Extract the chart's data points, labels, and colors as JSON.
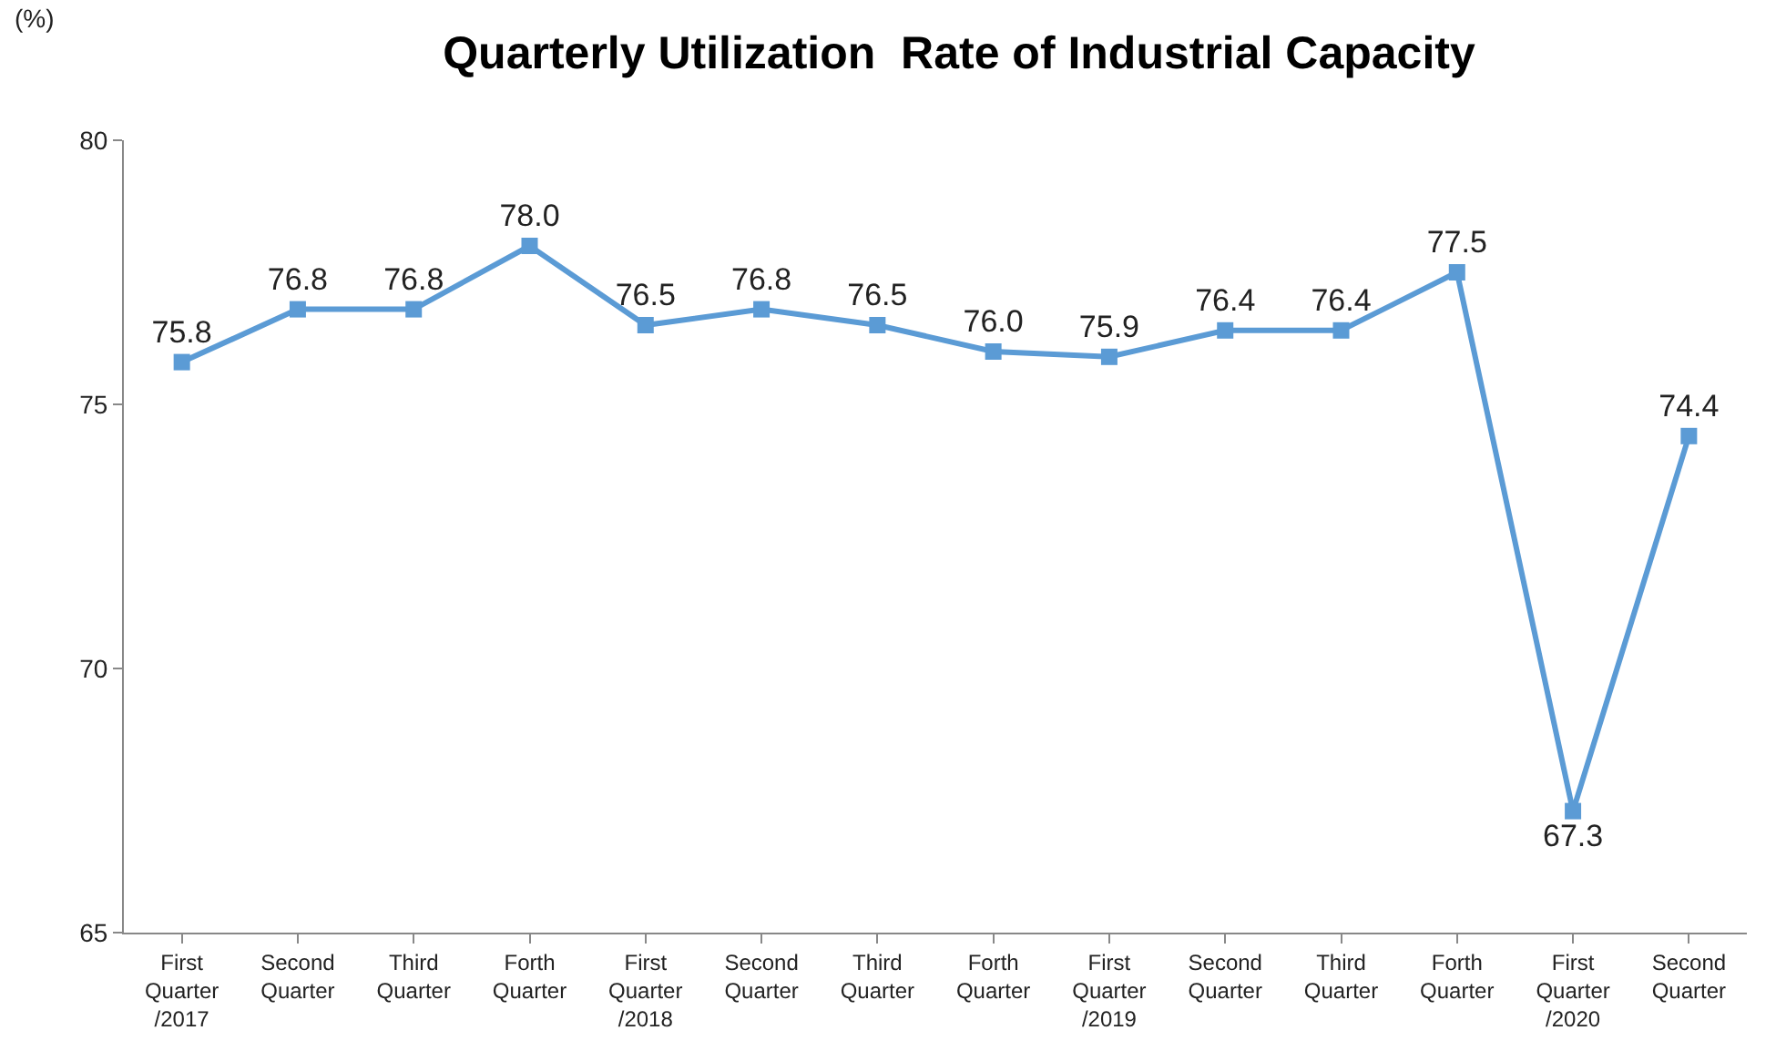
{
  "chart_data": {
    "type": "line",
    "title": "Quarterly Utilization  Rate of Industrial Capacity",
    "ylabel": "(%)",
    "categories": [
      "First\nQuarter\n/2017",
      "Second\nQuarter",
      "Third\nQuarter",
      "Forth\nQuarter",
      "First\nQuarter\n/2018",
      "Second\nQuarter",
      "Third\nQuarter",
      "Forth\nQuarter",
      "First\nQuarter\n/2019",
      "Second\nQuarter",
      "Third\nQuarter",
      "Forth\nQuarter",
      "First\nQuarter\n/2020",
      "Second\nQuarter"
    ],
    "series": [
      {
        "color": "#5b9bd5",
        "values": [
          75.8,
          76.8,
          76.8,
          78.0,
          76.5,
          76.8,
          76.5,
          76.0,
          75.9,
          76.4,
          76.4,
          77.5,
          67.3,
          74.4
        ],
        "value_labels": [
          "75.8",
          "76.8",
          "76.8",
          "78.0",
          "76.5",
          "76.8",
          "76.5",
          "76.0",
          "75.9",
          "76.4",
          "76.4",
          "77.5",
          "67.3",
          "74.4"
        ]
      }
    ],
    "ylim": [
      65,
      80
    ],
    "yticks": [
      65,
      70,
      75,
      80
    ],
    "marker": "square",
    "line_style": "solid"
  }
}
